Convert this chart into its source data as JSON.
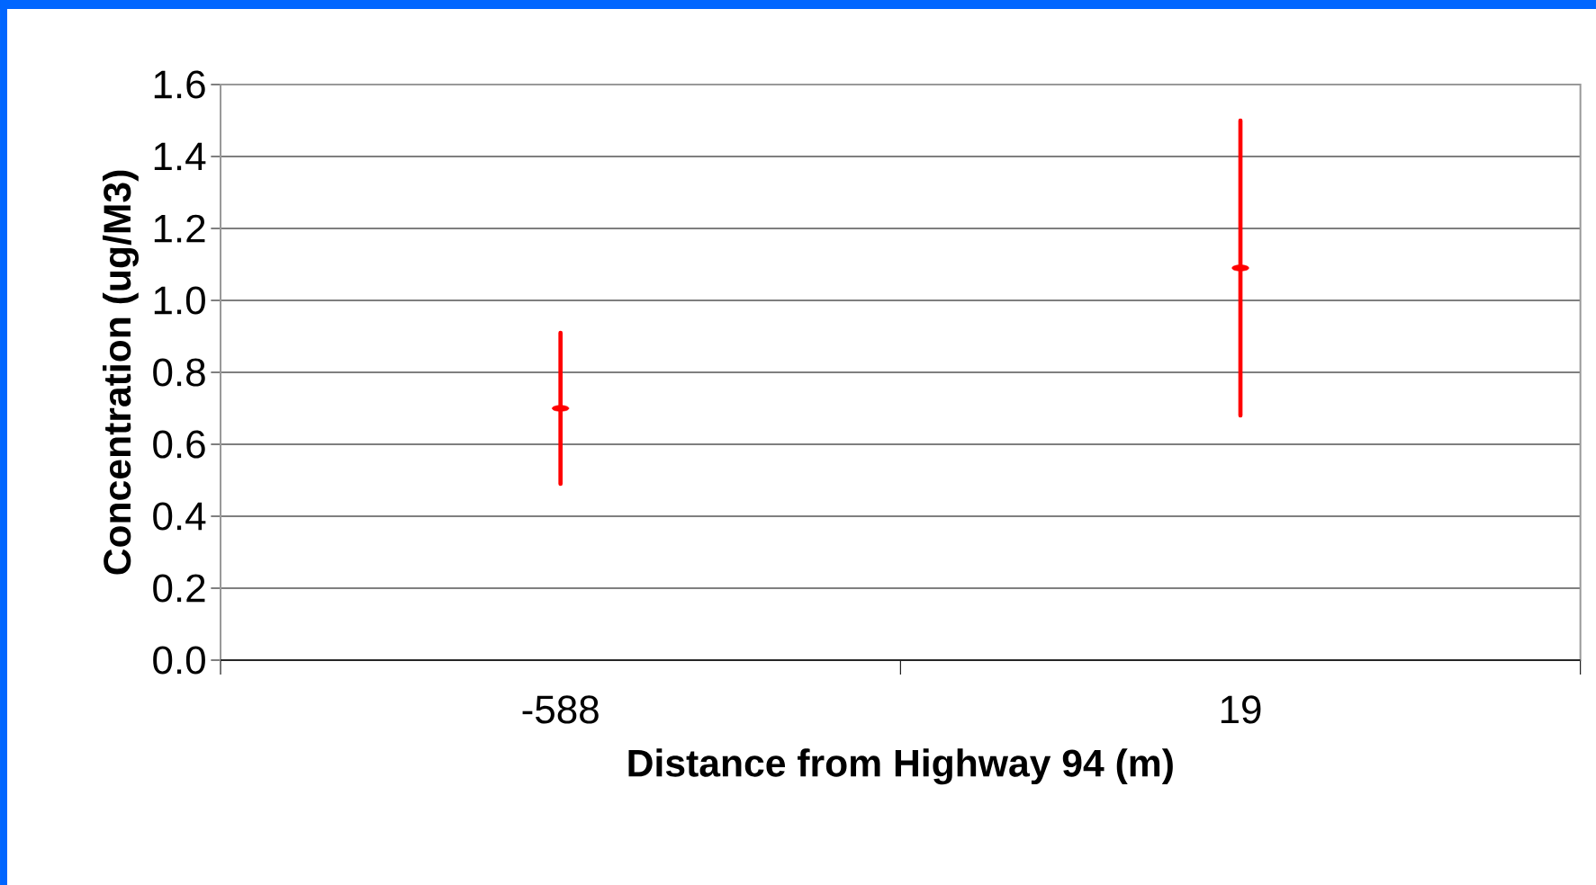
{
  "chart_data": {
    "type": "scatter",
    "xlabel": "Distance from Highway 94 (m)",
    "ylabel": "Concentration (ug/M3)",
    "categories": [
      "-588",
      "19"
    ],
    "values": [
      0.7,
      1.09
    ],
    "errors": [
      [
        0.49,
        0.91
      ],
      [
        0.68,
        1.5
      ]
    ],
    "color": "#ff0000",
    "ylim": [
      0,
      1.6
    ],
    "yticks": [
      {
        "value": 0,
        "label": "0.0"
      },
      {
        "value": 0.2,
        "label": "0.2"
      },
      {
        "value": 0.4,
        "label": "0.4"
      },
      {
        "value": 0.6,
        "label": "0.6"
      },
      {
        "value": 0.8,
        "label": "0.8"
      },
      {
        "value": 1.0,
        "label": "1.0"
      },
      {
        "value": 1.2,
        "label": "1.2"
      },
      {
        "value": 1.4,
        "label": "1.4"
      },
      {
        "value": 1.6,
        "label": "1.6"
      }
    ],
    "grid": "y"
  }
}
